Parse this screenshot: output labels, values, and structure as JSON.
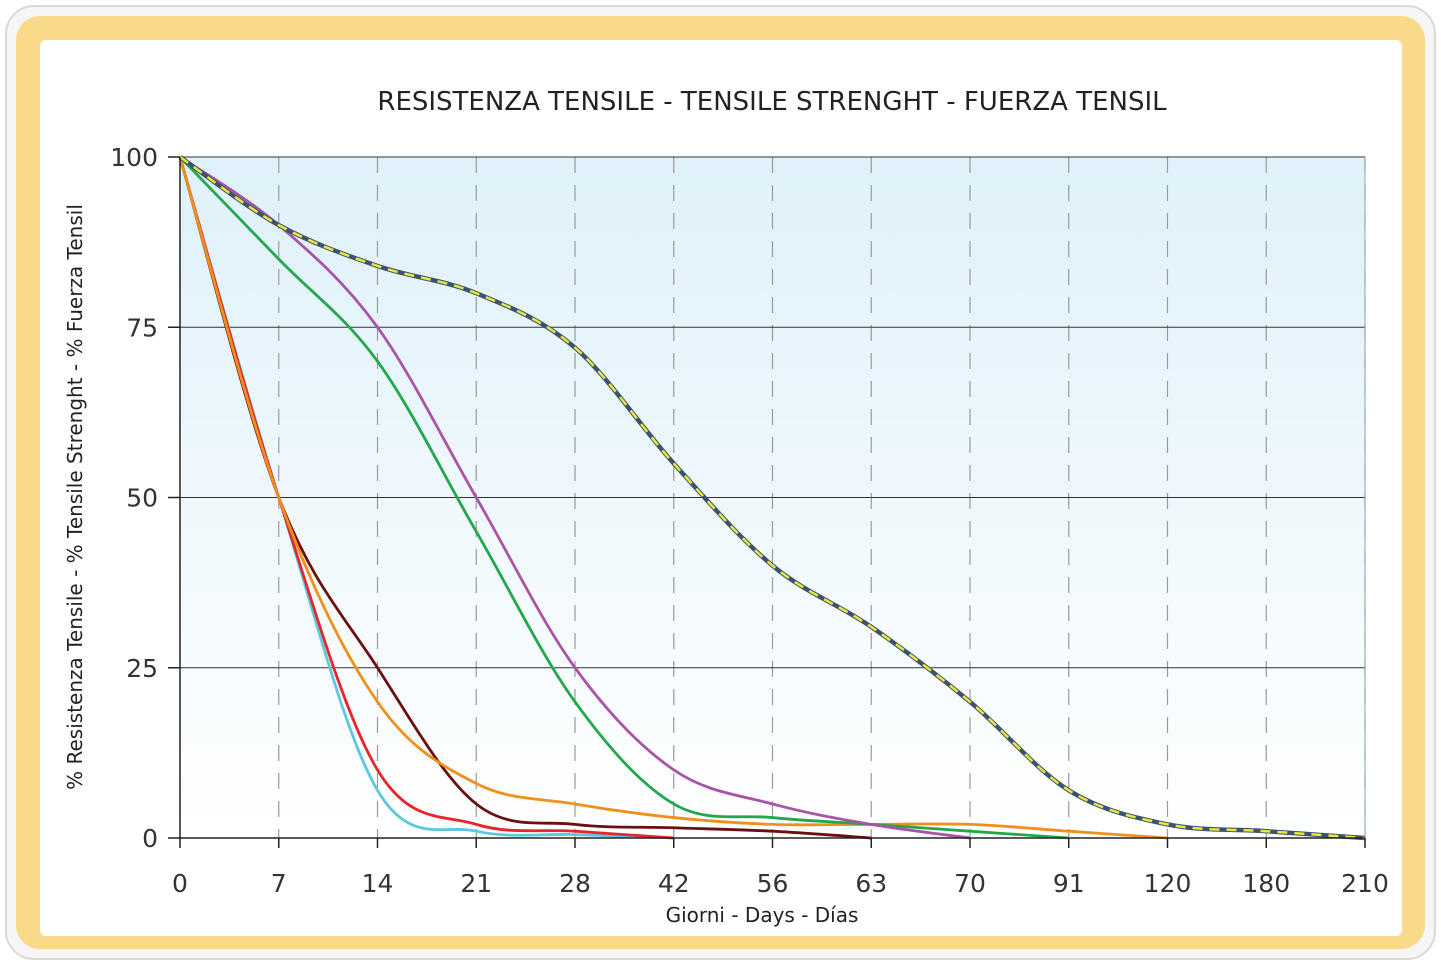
{
  "chart_data": {
    "type": "line",
    "title": "RESISTENZA TENSILE - TENSILE STRENGHT - FUERZA TENSIL",
    "xlabel": "Giorni - Days - Días",
    "ylabel": "% Resistenza Tensile - % Tensile Strenght - % Fuerza Tensil",
    "categories": [
      "0",
      "7",
      "14",
      "21",
      "28",
      "42",
      "56",
      "63",
      "70",
      "91",
      "120",
      "180",
      "210"
    ],
    "yticks": [
      0,
      25,
      50,
      75,
      100
    ],
    "ylim": [
      0,
      100
    ],
    "grid": {
      "horizontal": true,
      "vertical_dashed": true
    },
    "colors": {
      "background_top": "#dff1fa",
      "background_bottom": "#ffffff",
      "frame": "#fbd98a",
      "hline": "#333333",
      "vline": "#9a9a9a"
    },
    "series": [
      {
        "color": "#e8e83a",
        "dash": "#3d5270",
        "style": "dashed-double",
        "values": [
          100,
          90,
          84,
          80,
          72,
          55,
          40,
          31,
          20,
          7,
          2,
          1,
          0
        ]
      },
      {
        "color": "#a855a8",
        "values": [
          100,
          90,
          75,
          50,
          25,
          10,
          5,
          2,
          0,
          null,
          null,
          null,
          null
        ]
      },
      {
        "color": "#22a84a",
        "values": [
          100,
          85,
          70,
          45,
          20,
          5,
          3,
          2,
          1,
          0,
          null,
          null,
          null
        ]
      },
      {
        "color": "#f0901c",
        "values": [
          100,
          50,
          20,
          8,
          5,
          3,
          2,
          2,
          2,
          1,
          0,
          null,
          null
        ]
      },
      {
        "color": "#6b0f0f",
        "values": [
          100,
          50,
          25,
          5,
          2,
          1.5,
          1,
          0,
          null,
          null,
          null,
          null,
          null
        ]
      },
      {
        "color": "#e8252a",
        "values": [
          100,
          50,
          10,
          2,
          1,
          0,
          null,
          null,
          null,
          null,
          null,
          null,
          null
        ]
      },
      {
        "color": "#5cc8e0",
        "values": [
          100,
          50,
          7,
          1,
          0.5,
          0,
          null,
          null,
          null,
          null,
          null,
          null,
          null
        ]
      }
    ]
  }
}
